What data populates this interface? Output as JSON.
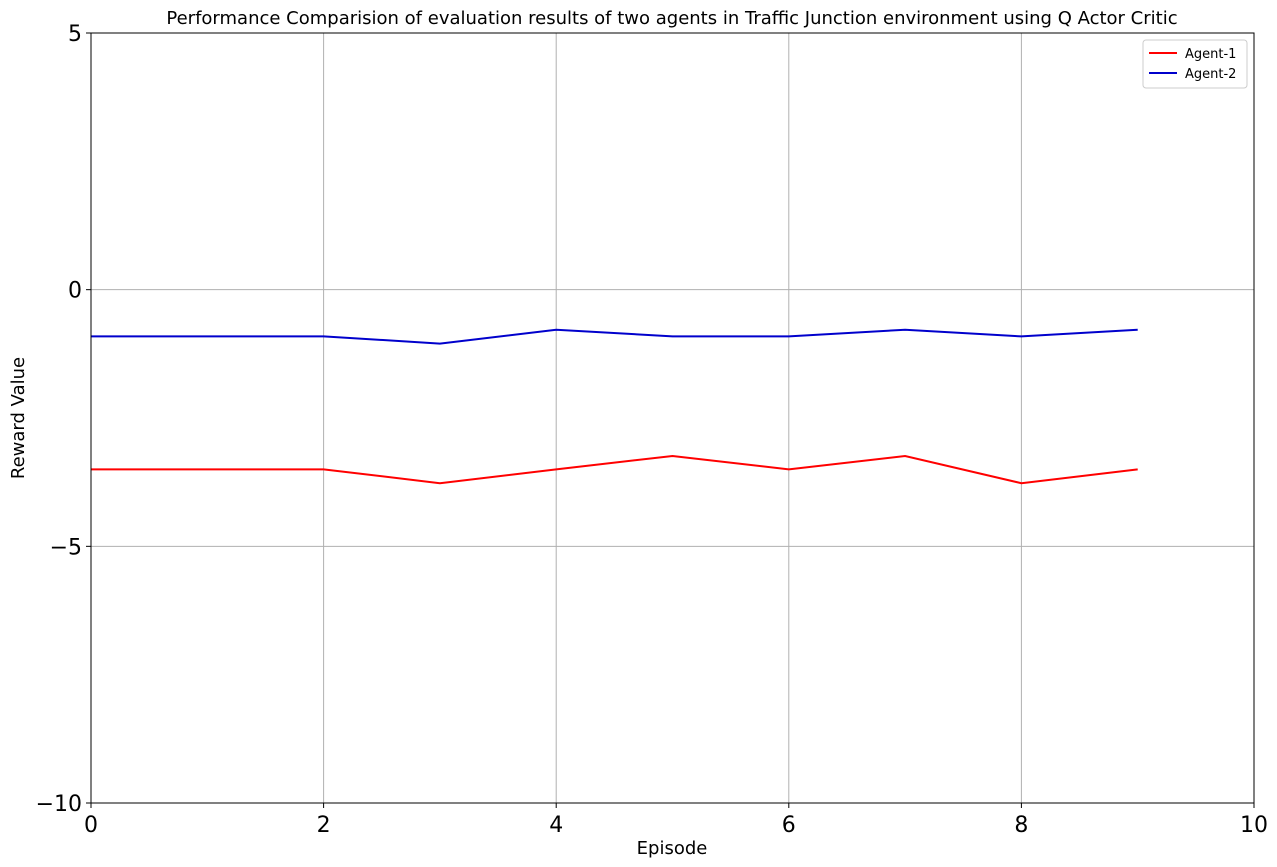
{
  "chart_data": {
    "type": "line",
    "title": "Performance Comparision of evaluation results of two agents in Traffic Junction environment using Q Actor Critic",
    "xlabel": "Episode",
    "ylabel": "Reward Value",
    "xlim": [
      0,
      10
    ],
    "ylim": [
      -10,
      5
    ],
    "xticks": [
      0,
      2,
      4,
      6,
      8,
      10
    ],
    "xtick_labels": [
      "0",
      "2",
      "4",
      "6",
      "8",
      "10"
    ],
    "yticks": [
      -10,
      -5,
      0,
      5
    ],
    "ytick_labels": [
      "−10",
      "−5",
      "0",
      "5"
    ],
    "grid": true,
    "legend_position": "top-right",
    "x": [
      0,
      1,
      2,
      3,
      4,
      5,
      6,
      7,
      8,
      9
    ],
    "series": [
      {
        "name": "Agent-1",
        "color": "#ff0000",
        "values": [
          -3.5,
          -3.5,
          -3.5,
          -3.77,
          -3.5,
          -3.24,
          -3.5,
          -3.24,
          -3.77,
          -3.5
        ]
      },
      {
        "name": "Agent-2",
        "color": "#0000cc",
        "values": [
          -0.91,
          -0.91,
          -0.91,
          -1.05,
          -0.78,
          -0.91,
          -0.91,
          -0.78,
          -0.91,
          -0.78
        ]
      }
    ]
  }
}
